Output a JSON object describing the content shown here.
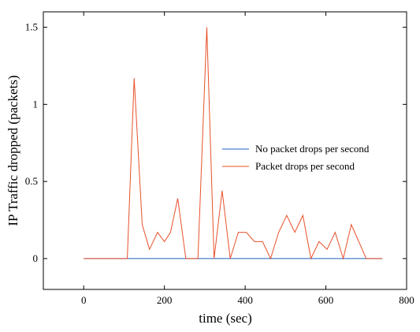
{
  "chart_data": {
    "type": "line",
    "title": "",
    "xlabel": "time (sec)",
    "ylabel": "IP Traffic dropped (packets)",
    "xlim": [
      -100,
      800
    ],
    "ylim": [
      -0.2,
      1.6
    ],
    "xticks": [
      0,
      200,
      400,
      600,
      800
    ],
    "yticks": [
      0,
      0.5,
      1,
      1.5
    ],
    "xtick_labels": [
      "0",
      "200",
      "400",
      "600",
      "800"
    ],
    "ytick_labels": [
      "0",
      "0.5",
      "1",
      "1.5"
    ],
    "grid": false,
    "legend_position": "center-right",
    "series": [
      {
        "name": "No packet drops per second",
        "color": "#1f5fbf",
        "x": [
          0,
          740
        ],
        "y": [
          0,
          0
        ]
      },
      {
        "name": "Packet drops per second",
        "color": "#e8502a",
        "x": [
          0,
          108,
          125,
          145,
          163,
          183,
          200,
          215,
          233,
          253,
          273,
          283,
          305,
          323,
          343,
          363,
          383,
          403,
          423,
          443,
          463,
          483,
          503,
          523,
          543,
          563,
          583,
          603,
          623,
          643,
          663,
          700,
          740
        ],
        "y": [
          0,
          0,
          1.17,
          0.22,
          0.06,
          0.17,
          0.11,
          0.17,
          0.39,
          0,
          0,
          0,
          1.5,
          0,
          0.44,
          0,
          0.17,
          0.17,
          0.11,
          0.11,
          0,
          0.17,
          0.28,
          0.17,
          0.28,
          0,
          0.11,
          0.06,
          0.17,
          0,
          0.22,
          0,
          0
        ]
      }
    ]
  }
}
